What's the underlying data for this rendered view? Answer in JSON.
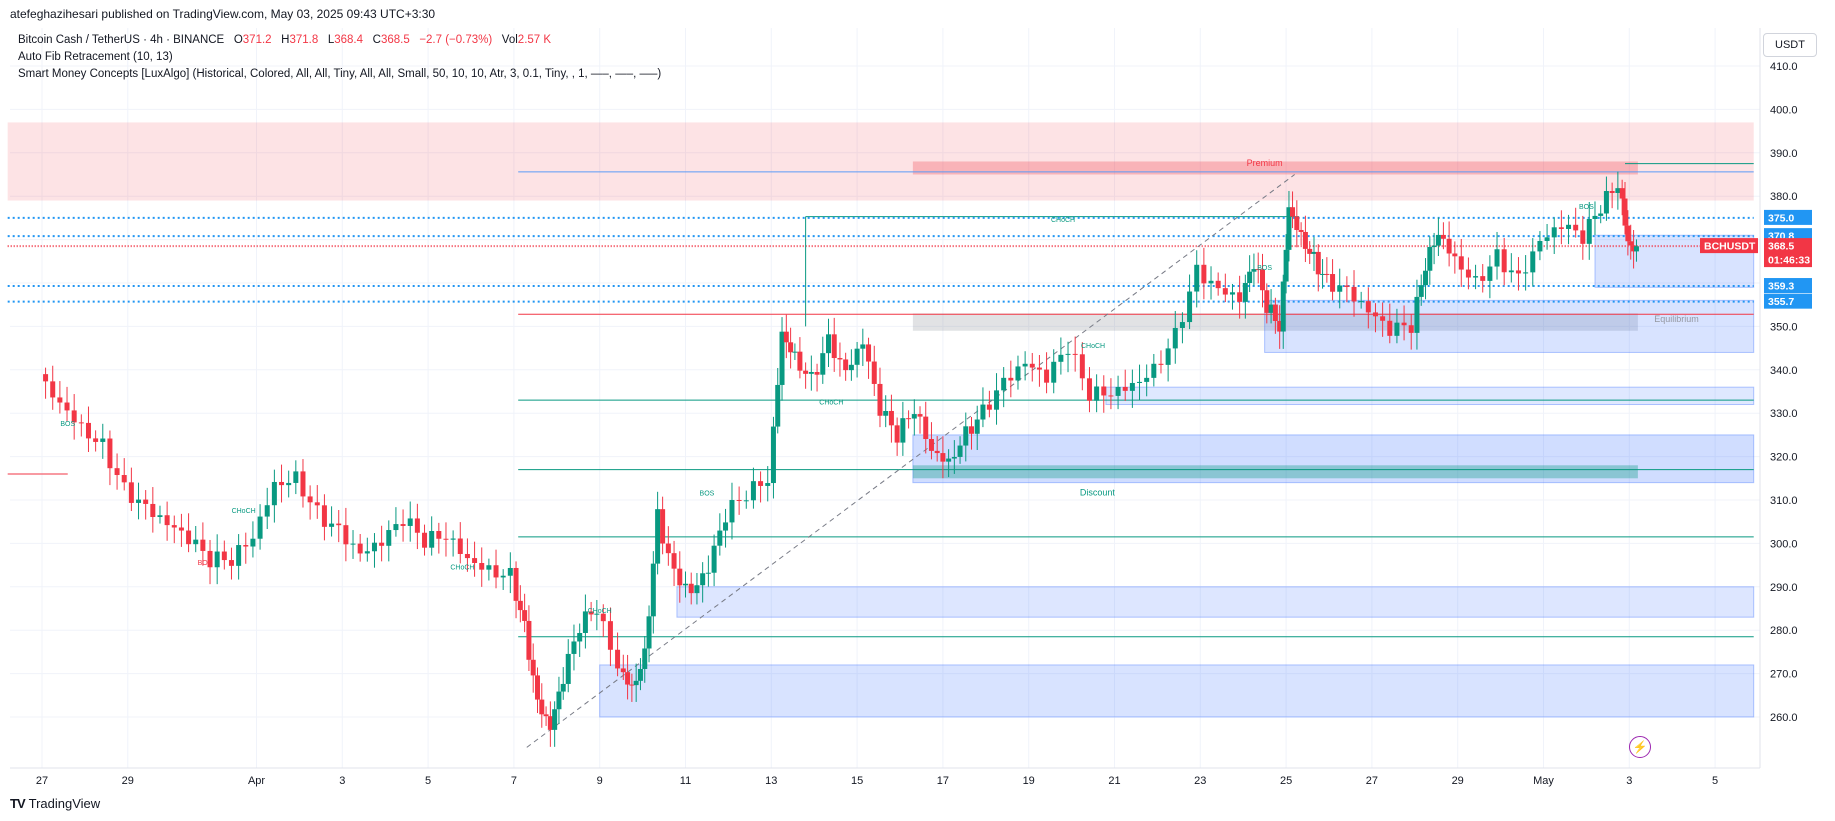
{
  "publisher": "atefeghazihesari published on TradingView.com, May 03, 2025 09:43 UTC+3:30",
  "legend": {
    "symbol": "Bitcoin Cash / TetherUS · 4h · BINANCE",
    "o_label": "O",
    "o_value": "371.2",
    "h_label": "H",
    "h_value": "371.8",
    "l_label": "L",
    "l_value": "368.4",
    "c_label": "C",
    "c_value": "368.5",
    "change": "−2.7 (−0.73%)",
    "vol_label": "Vol",
    "vol_value": "2.57 K",
    "indicator1": "Auto Fib Retracement (10, 13)",
    "indicator2": "Smart Money Concepts [LuxAlgo] (Historical, Colored, All, All, Tiny, All, All, Small, 50, 10, 10, Atr, 3, 0.1, Tiny, , 1, —–, —–, —–)"
  },
  "currency": "USDT",
  "footer": "TradingView",
  "colors": {
    "up": "#089981",
    "down": "#f23645",
    "zone_blue": "#2962ff",
    "zone_red": "#f23645",
    "fib_blue": "#2196f3",
    "grid": "#f0f3fa"
  },
  "chart_data": {
    "type": "candlestick",
    "symbol": "BCHUSDT",
    "timeframe": "4h",
    "ylim": [
      252,
      416
    ],
    "price_ticks": [
      260,
      270,
      280,
      290,
      300,
      310,
      320,
      330,
      340,
      350,
      360,
      370,
      380,
      390,
      400,
      410
    ],
    "x_ticks": [
      {
        "label": "27",
        "day": 0
      },
      {
        "label": "29",
        "day": 2
      },
      {
        "label": "Apr",
        "day": 5
      },
      {
        "label": "3",
        "day": 7
      },
      {
        "label": "5",
        "day": 9
      },
      {
        "label": "7",
        "day": 11
      },
      {
        "label": "9",
        "day": 13
      },
      {
        "label": "11",
        "day": 15
      },
      {
        "label": "13",
        "day": 17
      },
      {
        "label": "15",
        "day": 19
      },
      {
        "label": "17",
        "day": 21
      },
      {
        "label": "19",
        "day": 23
      },
      {
        "label": "21",
        "day": 25
      },
      {
        "label": "23",
        "day": 27
      },
      {
        "label": "25",
        "day": 29
      },
      {
        "label": "27",
        "day": 31
      },
      {
        "label": "29",
        "day": 33
      },
      {
        "label": "May",
        "day": 35
      },
      {
        "label": "3",
        "day": 37
      },
      {
        "label": "5",
        "day": 39
      }
    ],
    "price_badges": [
      {
        "label": "375.0",
        "price": 375.0,
        "color": "#2196f3"
      },
      {
        "label": "370.8",
        "price": 370.8,
        "color": "#2196f3"
      },
      {
        "label": "BCHUSDT",
        "price": 368.5,
        "color": "#f23645"
      },
      {
        "label": "368.5",
        "price": 368.5,
        "color": "#f23645"
      },
      {
        "label": "01:46:33",
        "price": 368.5,
        "color": "#f23645"
      },
      {
        "label": "359.3",
        "price": 359.3,
        "color": "#2196f3"
      },
      {
        "label": "355.7",
        "price": 355.7,
        "color": "#2196f3"
      }
    ],
    "close_path": [
      [
        0,
        339
      ],
      [
        0.5,
        334
      ],
      [
        1,
        328
      ],
      [
        1.5,
        323
      ],
      [
        2,
        312
      ],
      [
        2.5,
        307
      ],
      [
        3,
        303
      ],
      [
        3.5,
        300
      ],
      [
        4,
        296
      ],
      [
        4.5,
        297
      ],
      [
        5,
        303
      ],
      [
        5.5,
        315
      ],
      [
        6,
        316
      ],
      [
        6.5,
        307
      ],
      [
        7,
        302
      ],
      [
        7.5,
        296
      ],
      [
        8,
        299
      ],
      [
        8.5,
        305
      ],
      [
        9,
        301
      ],
      [
        9.5,
        303
      ],
      [
        10,
        298
      ],
      [
        10.5,
        295
      ],
      [
        11,
        293
      ],
      [
        11.3,
        280
      ],
      [
        11.6,
        262
      ],
      [
        11.9,
        256
      ],
      [
        12.2,
        268
      ],
      [
        12.6,
        281
      ],
      [
        13,
        286
      ],
      [
        13.5,
        273
      ],
      [
        13.8,
        268
      ],
      [
        14.1,
        275
      ],
      [
        14.4,
        306
      ],
      [
        14.8,
        292
      ],
      [
        15.2,
        287
      ],
      [
        15.6,
        293
      ],
      [
        16,
        306
      ],
      [
        16.5,
        312
      ],
      [
        17,
        316
      ],
      [
        17.3,
        350
      ],
      [
        17.6,
        344
      ],
      [
        18,
        338
      ],
      [
        18.4,
        346
      ],
      [
        18.8,
        338
      ],
      [
        19.2,
        345
      ],
      [
        19.6,
        330
      ],
      [
        20,
        325
      ],
      [
        20.4,
        332
      ],
      [
        20.8,
        323
      ],
      [
        21.2,
        320
      ],
      [
        21.6,
        326
      ],
      [
        22,
        330
      ],
      [
        22.5,
        336
      ],
      [
        23,
        340
      ],
      [
        23.5,
        337
      ],
      [
        24,
        345
      ],
      [
        24.5,
        335
      ],
      [
        25,
        336
      ],
      [
        25.5,
        338
      ],
      [
        26,
        341
      ],
      [
        26.5,
        348
      ],
      [
        27,
        362
      ],
      [
        27.5,
        357
      ],
      [
        28,
        355
      ],
      [
        28.3,
        364
      ],
      [
        28.6,
        355
      ],
      [
        28.9,
        351
      ],
      [
        29.1,
        379
      ],
      [
        29.4,
        372
      ],
      [
        29.7,
        366
      ],
      [
        30,
        360
      ],
      [
        30.5,
        357
      ],
      [
        31,
        352
      ],
      [
        31.5,
        348
      ],
      [
        32,
        350
      ],
      [
        32.3,
        365
      ],
      [
        32.6,
        373
      ],
      [
        33,
        367
      ],
      [
        33.5,
        361
      ],
      [
        34,
        366
      ],
      [
        34.5,
        360
      ],
      [
        35,
        368
      ],
      [
        35.5,
        372
      ],
      [
        36,
        370
      ],
      [
        36.4,
        378
      ],
      [
        36.8,
        384
      ],
      [
        37,
        371
      ],
      [
        37.2,
        368.5
      ]
    ],
    "structure_labels": [
      {
        "text": "BOS",
        "x": 0.6,
        "price": 327
      },
      {
        "text": "CHoCH",
        "x": 4.7,
        "price": 307
      },
      {
        "text": "BOS",
        "x": 3.8,
        "price": 295
      },
      {
        "text": "CHoCH",
        "x": 9.8,
        "price": 294
      },
      {
        "text": "CHoCH",
        "x": 13.0,
        "price": 284
      },
      {
        "text": "BOS",
        "x": 15.5,
        "price": 311
      },
      {
        "text": "CHoCH",
        "x": 18.4,
        "price": 332
      },
      {
        "text": "CHoCH",
        "x": 23.8,
        "price": 374
      },
      {
        "text": "CHoCH",
        "x": 24.5,
        "price": 345
      },
      {
        "text": "BOS",
        "x": 28.5,
        "price": 363
      },
      {
        "text": "BOS",
        "x": 36.0,
        "price": 377
      }
    ],
    "zone_labels": [
      {
        "text": "Premium",
        "price": 387
      },
      {
        "text": "Equilibrium",
        "price": 351
      },
      {
        "text": "Discount",
        "price": 311
      }
    ]
  }
}
